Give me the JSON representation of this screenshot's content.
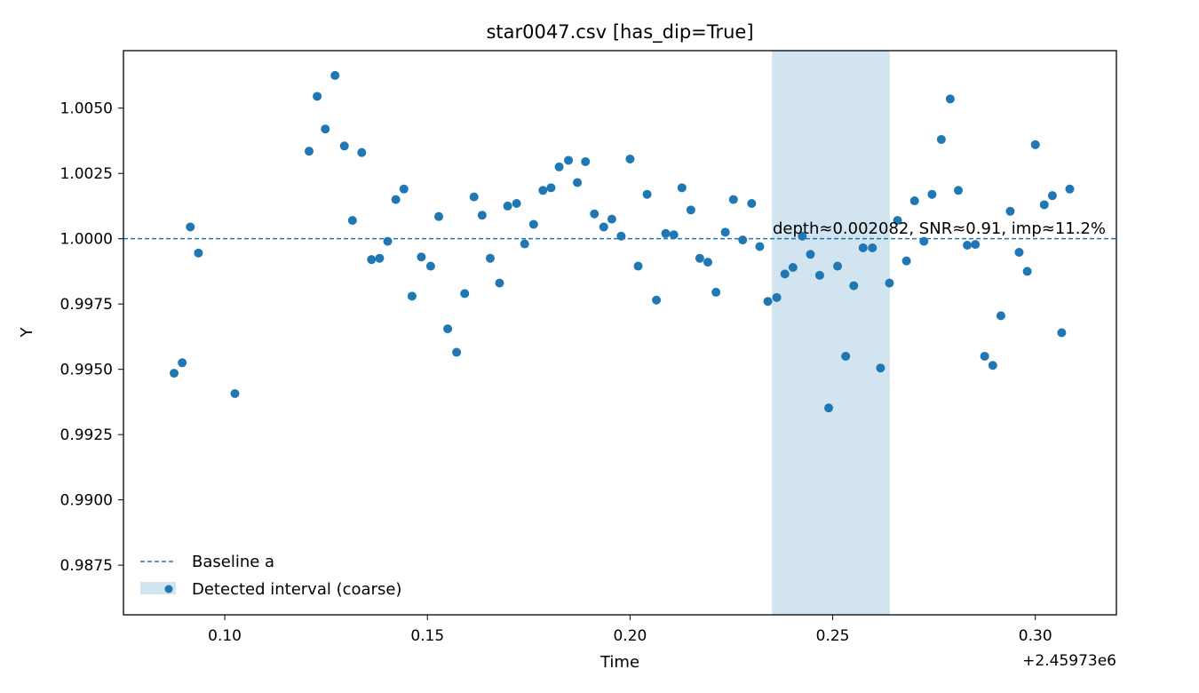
{
  "chart_data": {
    "type": "scatter",
    "title": "star0047.csv [has_dip=True]",
    "xlabel": "Time",
    "ylabel": "Y",
    "x_offset_label": "+2.45973e6",
    "xlim": [
      0.075,
      0.32
    ],
    "ylim": [
      0.9856,
      1.0072
    ],
    "x_ticks": [
      0.1,
      0.15,
      0.2,
      0.25,
      0.3
    ],
    "x_tick_labels": [
      "0.10",
      "0.15",
      "0.20",
      "0.25",
      "0.30"
    ],
    "y_ticks": [
      0.9875,
      0.99,
      0.9925,
      0.995,
      0.9975,
      1.0,
      1.0025,
      1.005
    ],
    "y_tick_labels": [
      "0.9875",
      "0.9900",
      "0.9925",
      "0.9950",
      "0.9975",
      "1.0000",
      "1.0025",
      "1.0050"
    ],
    "baseline": {
      "name": "Baseline a",
      "value": 1.0,
      "color": "#1f77b4"
    },
    "interval": {
      "name": "Detected interval (coarse)",
      "x_start": 0.235,
      "x_end": 0.2641,
      "color": "#1f77b4"
    },
    "annotation": "depth≈0.002082, SNR≈0.91, imp≈11.2%",
    "legend_placement": "lower-left",
    "grid": false,
    "point_color": "#1f77b4",
    "points": [
      [
        0.0875,
        0.99485
      ],
      [
        0.0895,
        0.99525
      ],
      [
        0.0915,
        1.00045
      ],
      [
        0.0935,
        0.99945
      ],
      [
        0.1025,
        0.99407
      ],
      [
        0.1208,
        1.00335
      ],
      [
        0.1228,
        1.00545
      ],
      [
        0.1248,
        1.0042
      ],
      [
        0.1272,
        1.00625
      ],
      [
        0.1295,
        1.00355
      ],
      [
        0.1315,
        1.0007
      ],
      [
        0.1338,
        1.0033
      ],
      [
        0.1362,
        0.9992
      ],
      [
        0.1382,
        0.99925
      ],
      [
        0.1402,
        0.9999
      ],
      [
        0.1422,
        1.0015
      ],
      [
        0.1442,
        1.0019
      ],
      [
        0.1462,
        0.9978
      ],
      [
        0.1485,
        0.9993
      ],
      [
        0.1508,
        0.99895
      ],
      [
        0.1528,
        1.00085
      ],
      [
        0.155,
        0.99655
      ],
      [
        0.1572,
        0.99565
      ],
      [
        0.1592,
        0.9979
      ],
      [
        0.1615,
        1.0016
      ],
      [
        0.1635,
        1.0009
      ],
      [
        0.1655,
        0.99925
      ],
      [
        0.1678,
        0.9983
      ],
      [
        0.1698,
        1.00125
      ],
      [
        0.172,
        1.00135
      ],
      [
        0.174,
        0.9998
      ],
      [
        0.1762,
        1.00055
      ],
      [
        0.1785,
        1.00185
      ],
      [
        0.1805,
        1.00195
      ],
      [
        0.1825,
        1.00275
      ],
      [
        0.1848,
        1.003
      ],
      [
        0.187,
        1.00215
      ],
      [
        0.189,
        1.00295
      ],
      [
        0.1912,
        1.00095
      ],
      [
        0.1935,
        1.00045
      ],
      [
        0.1955,
        1.00075
      ],
      [
        0.1978,
        1.0001
      ],
      [
        0.2,
        1.00305
      ],
      [
        0.202,
        0.99895
      ],
      [
        0.2042,
        1.0017
      ],
      [
        0.2065,
        0.99765
      ],
      [
        0.2088,
        1.0002
      ],
      [
        0.2108,
        1.00015
      ],
      [
        0.2128,
        1.00195
      ],
      [
        0.215,
        1.0011
      ],
      [
        0.2172,
        0.99925
      ],
      [
        0.2192,
        0.9991
      ],
      [
        0.2212,
        0.99795
      ],
      [
        0.2235,
        1.00025
      ],
      [
        0.2255,
        1.0015
      ],
      [
        0.2278,
        0.99995
      ],
      [
        0.23,
        1.00135
      ],
      [
        0.232,
        0.9997
      ],
      [
        0.234,
        0.9976
      ],
      [
        0.2362,
        0.99775
      ],
      [
        0.2382,
        0.99865
      ],
      [
        0.2402,
        0.9989
      ],
      [
        0.2425,
        1.0001
      ],
      [
        0.2445,
        0.9994
      ],
      [
        0.2468,
        0.9986
      ],
      [
        0.249,
        0.99352
      ],
      [
        0.2512,
        0.99895
      ],
      [
        0.2532,
        0.9955
      ],
      [
        0.2552,
        0.9982
      ],
      [
        0.2575,
        0.99965
      ],
      [
        0.2598,
        0.99965
      ],
      [
        0.2618,
        0.99505
      ],
      [
        0.264,
        0.9983
      ],
      [
        0.266,
        1.0007
      ],
      [
        0.2682,
        0.99915
      ],
      [
        0.2702,
        1.00145
      ],
      [
        0.2725,
        0.9999
      ],
      [
        0.2745,
        1.0017
      ],
      [
        0.2768,
        1.0038
      ],
      [
        0.279,
        1.00535
      ],
      [
        0.281,
        1.00185
      ],
      [
        0.2832,
        0.99975
      ],
      [
        0.2852,
        0.99978
      ],
      [
        0.2875,
        0.9955
      ],
      [
        0.2895,
        0.99515
      ],
      [
        0.2915,
        0.99705
      ],
      [
        0.2938,
        1.00105
      ],
      [
        0.296,
        0.99948
      ],
      [
        0.298,
        0.99875
      ],
      [
        0.3,
        1.0036
      ],
      [
        0.3022,
        1.0013
      ],
      [
        0.3042,
        1.00165
      ],
      [
        0.3065,
        0.9964
      ],
      [
        0.3085,
        1.0019
      ]
    ]
  }
}
